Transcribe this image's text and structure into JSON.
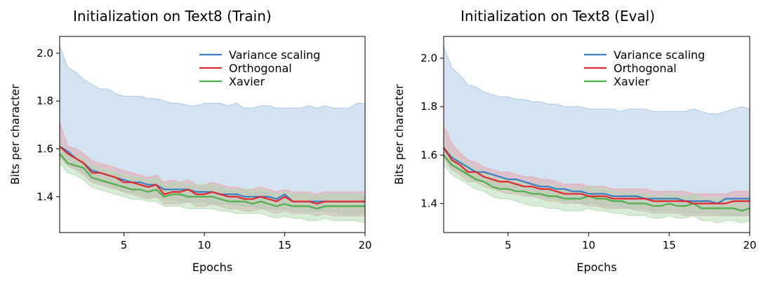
{
  "chart_data": [
    {
      "type": "line",
      "title": "Initialization on Text8 (Train)",
      "xlabel": "Epochs",
      "ylabel": "Bits per character",
      "xlim": [
        1,
        20
      ],
      "ylim": [
        1.25,
        2.07
      ],
      "xticks": [
        5,
        10,
        15,
        20
      ],
      "yticks": [
        1.4,
        1.6,
        1.8,
        2.0
      ],
      "ytick_labels": [
        "1.4",
        "1.6",
        "1.8",
        "2.0"
      ],
      "legend": "top-right",
      "grid": false,
      "x": [
        1,
        1.5,
        2,
        2.5,
        3,
        3.5,
        4,
        4.5,
        5,
        5.5,
        6,
        6.5,
        7,
        7.5,
        8,
        8.5,
        9,
        9.5,
        10,
        10.5,
        11,
        11.5,
        12,
        12.5,
        13,
        13.5,
        14,
        14.5,
        15,
        15.5,
        16,
        16.5,
        17,
        17.5,
        18,
        18.5,
        19,
        19.5,
        20
      ],
      "series": [
        {
          "name": "Variance scaling",
          "color": "#3a7dc0",
          "band_color": "#9fc2e0",
          "band_border": "#a9c8e6",
          "values": [
            1.61,
            1.59,
            1.56,
            1.54,
            1.51,
            1.5,
            1.49,
            1.48,
            1.47,
            1.46,
            1.46,
            1.45,
            1.45,
            1.43,
            1.43,
            1.43,
            1.43,
            1.42,
            1.42,
            1.42,
            1.41,
            1.41,
            1.41,
            1.4,
            1.4,
            1.4,
            1.4,
            1.39,
            1.41,
            1.38,
            1.38,
            1.38,
            1.38,
            1.38,
            1.38,
            1.38,
            1.38,
            1.38,
            1.38
          ],
          "lower": [
            1.57,
            1.54,
            1.52,
            1.5,
            1.47,
            1.46,
            1.45,
            1.44,
            1.42,
            1.42,
            1.41,
            1.4,
            1.4,
            1.39,
            1.39,
            1.38,
            1.38,
            1.38,
            1.38,
            1.37,
            1.37,
            1.37,
            1.36,
            1.36,
            1.36,
            1.35,
            1.35,
            1.35,
            1.35,
            1.34,
            1.34,
            1.34,
            1.34,
            1.34,
            1.34,
            1.33,
            1.33,
            1.33,
            1.33
          ],
          "upper": [
            2.03,
            1.94,
            1.92,
            1.89,
            1.87,
            1.85,
            1.85,
            1.83,
            1.82,
            1.82,
            1.82,
            1.81,
            1.81,
            1.8,
            1.79,
            1.79,
            1.78,
            1.78,
            1.79,
            1.79,
            1.79,
            1.78,
            1.79,
            1.77,
            1.77,
            1.78,
            1.78,
            1.77,
            1.77,
            1.77,
            1.77,
            1.78,
            1.77,
            1.78,
            1.77,
            1.77,
            1.77,
            1.79,
            1.79
          ]
        },
        {
          "name": "Orthogonal",
          "color": "#e0282e",
          "band_color": "#e59ca3",
          "band_border": "#e8aab0",
          "values": [
            1.61,
            1.58,
            1.56,
            1.54,
            1.5,
            1.5,
            1.49,
            1.48,
            1.46,
            1.46,
            1.45,
            1.44,
            1.45,
            1.41,
            1.42,
            1.42,
            1.43,
            1.41,
            1.41,
            1.42,
            1.41,
            1.4,
            1.4,
            1.39,
            1.39,
            1.4,
            1.39,
            1.38,
            1.4,
            1.38,
            1.38,
            1.38,
            1.37,
            1.38,
            1.38,
            1.38,
            1.38,
            1.38,
            1.38
          ],
          "lower": [
            1.56,
            1.53,
            1.51,
            1.49,
            1.46,
            1.45,
            1.44,
            1.43,
            1.42,
            1.41,
            1.4,
            1.39,
            1.4,
            1.37,
            1.37,
            1.37,
            1.38,
            1.36,
            1.36,
            1.37,
            1.36,
            1.35,
            1.35,
            1.34,
            1.34,
            1.35,
            1.34,
            1.33,
            1.34,
            1.33,
            1.33,
            1.33,
            1.32,
            1.33,
            1.32,
            1.32,
            1.32,
            1.32,
            1.32
          ],
          "upper": [
            1.71,
            1.61,
            1.6,
            1.58,
            1.55,
            1.54,
            1.53,
            1.52,
            1.51,
            1.5,
            1.49,
            1.48,
            1.49,
            1.46,
            1.47,
            1.46,
            1.47,
            1.45,
            1.45,
            1.46,
            1.45,
            1.44,
            1.44,
            1.43,
            1.43,
            1.44,
            1.43,
            1.42,
            1.43,
            1.42,
            1.42,
            1.42,
            1.41,
            1.42,
            1.42,
            1.42,
            1.42,
            1.42,
            1.42
          ]
        },
        {
          "name": "Xavier",
          "color": "#4daf4a",
          "band_color": "#a8d7a6",
          "band_border": "#b4ddb2",
          "values": [
            1.58,
            1.54,
            1.53,
            1.52,
            1.48,
            1.47,
            1.46,
            1.45,
            1.44,
            1.43,
            1.43,
            1.42,
            1.43,
            1.4,
            1.41,
            1.41,
            1.4,
            1.4,
            1.4,
            1.4,
            1.39,
            1.38,
            1.38,
            1.38,
            1.37,
            1.38,
            1.37,
            1.36,
            1.37,
            1.36,
            1.36,
            1.36,
            1.35,
            1.36,
            1.36,
            1.36,
            1.36,
            1.36,
            1.36
          ],
          "lower": [
            1.54,
            1.5,
            1.49,
            1.47,
            1.44,
            1.43,
            1.42,
            1.41,
            1.4,
            1.39,
            1.39,
            1.38,
            1.38,
            1.36,
            1.36,
            1.36,
            1.35,
            1.35,
            1.35,
            1.35,
            1.34,
            1.34,
            1.33,
            1.33,
            1.33,
            1.33,
            1.32,
            1.31,
            1.32,
            1.31,
            1.31,
            1.3,
            1.3,
            1.31,
            1.3,
            1.3,
            1.3,
            1.3,
            1.29
          ],
          "upper": [
            1.63,
            1.59,
            1.57,
            1.56,
            1.53,
            1.52,
            1.51,
            1.5,
            1.49,
            1.48,
            1.48,
            1.47,
            1.48,
            1.45,
            1.46,
            1.46,
            1.45,
            1.45,
            1.45,
            1.45,
            1.44,
            1.43,
            1.43,
            1.43,
            1.42,
            1.43,
            1.42,
            1.41,
            1.42,
            1.41,
            1.41,
            1.41,
            1.4,
            1.41,
            1.41,
            1.41,
            1.41,
            1.41,
            1.41
          ]
        }
      ]
    },
    {
      "type": "line",
      "title": "Initialization on Text8 (Eval)",
      "xlabel": "Epochs",
      "ylabel": "Bits per character",
      "xlim": [
        1,
        20
      ],
      "ylim": [
        1.28,
        2.09
      ],
      "xticks": [
        5,
        10,
        15,
        20
      ],
      "yticks": [
        1.4,
        1.6,
        1.8,
        2.0
      ],
      "ytick_labels": [
        "1.4",
        "1.6",
        "1.8",
        "2.0"
      ],
      "legend": "top-right",
      "grid": false,
      "x": [
        1,
        1.5,
        2,
        2.5,
        3,
        3.5,
        4,
        4.5,
        5,
        5.5,
        6,
        6.5,
        7,
        7.5,
        8,
        8.5,
        9,
        9.5,
        10,
        10.5,
        11,
        11.5,
        12,
        12.5,
        13,
        13.5,
        14,
        14.5,
        15,
        15.5,
        16,
        16.5,
        17,
        17.5,
        18,
        18.5,
        19,
        19.5,
        20
      ],
      "series": [
        {
          "name": "Variance scaling",
          "color": "#3a7dc0",
          "band_color": "#9fc2e0",
          "band_border": "#a9c8e6",
          "values": [
            1.63,
            1.59,
            1.57,
            1.55,
            1.53,
            1.53,
            1.52,
            1.51,
            1.5,
            1.5,
            1.49,
            1.48,
            1.47,
            1.47,
            1.46,
            1.46,
            1.45,
            1.45,
            1.44,
            1.44,
            1.44,
            1.43,
            1.43,
            1.43,
            1.43,
            1.42,
            1.42,
            1.42,
            1.42,
            1.42,
            1.41,
            1.41,
            1.41,
            1.41,
            1.4,
            1.42,
            1.42,
            1.42,
            1.42
          ],
          "lower": [
            1.59,
            1.55,
            1.53,
            1.51,
            1.49,
            1.49,
            1.48,
            1.47,
            1.46,
            1.45,
            1.44,
            1.43,
            1.43,
            1.42,
            1.42,
            1.41,
            1.41,
            1.4,
            1.4,
            1.4,
            1.39,
            1.39,
            1.39,
            1.38,
            1.38,
            1.38,
            1.37,
            1.37,
            1.37,
            1.37,
            1.36,
            1.36,
            1.36,
            1.36,
            1.36,
            1.35,
            1.35,
            1.35,
            1.35
          ],
          "upper": [
            2.05,
            1.96,
            1.93,
            1.89,
            1.88,
            1.86,
            1.85,
            1.84,
            1.84,
            1.83,
            1.83,
            1.82,
            1.82,
            1.81,
            1.81,
            1.8,
            1.8,
            1.8,
            1.79,
            1.79,
            1.79,
            1.79,
            1.78,
            1.79,
            1.79,
            1.79,
            1.78,
            1.78,
            1.78,
            1.78,
            1.78,
            1.79,
            1.78,
            1.77,
            1.77,
            1.78,
            1.79,
            1.8,
            1.79
          ]
        },
        {
          "name": "Orthogonal",
          "color": "#e0282e",
          "band_color": "#e59ca3",
          "band_border": "#e8aab0",
          "values": [
            1.63,
            1.58,
            1.56,
            1.53,
            1.53,
            1.51,
            1.5,
            1.49,
            1.49,
            1.48,
            1.47,
            1.47,
            1.46,
            1.46,
            1.45,
            1.44,
            1.44,
            1.44,
            1.43,
            1.43,
            1.43,
            1.42,
            1.42,
            1.42,
            1.42,
            1.42,
            1.41,
            1.41,
            1.41,
            1.41,
            1.41,
            1.4,
            1.4,
            1.4,
            1.4,
            1.4,
            1.41,
            1.41,
            1.41
          ],
          "lower": [
            1.59,
            1.54,
            1.52,
            1.49,
            1.49,
            1.47,
            1.46,
            1.45,
            1.44,
            1.44,
            1.43,
            1.43,
            1.42,
            1.41,
            1.41,
            1.4,
            1.4,
            1.4,
            1.39,
            1.39,
            1.38,
            1.38,
            1.38,
            1.38,
            1.37,
            1.37,
            1.36,
            1.36,
            1.36,
            1.36,
            1.35,
            1.35,
            1.35,
            1.35,
            1.35,
            1.35,
            1.35,
            1.35,
            1.35
          ],
          "upper": [
            1.72,
            1.65,
            1.61,
            1.58,
            1.57,
            1.55,
            1.54,
            1.53,
            1.53,
            1.52,
            1.51,
            1.51,
            1.5,
            1.5,
            1.49,
            1.48,
            1.48,
            1.48,
            1.47,
            1.47,
            1.47,
            1.46,
            1.46,
            1.46,
            1.46,
            1.46,
            1.45,
            1.45,
            1.45,
            1.45,
            1.45,
            1.44,
            1.44,
            1.44,
            1.44,
            1.44,
            1.45,
            1.45,
            1.45
          ]
        },
        {
          "name": "Xavier",
          "color": "#4daf4a",
          "band_color": "#a8d7a6",
          "band_border": "#b4ddb2",
          "values": [
            1.6,
            1.56,
            1.54,
            1.52,
            1.5,
            1.49,
            1.47,
            1.46,
            1.46,
            1.45,
            1.45,
            1.44,
            1.44,
            1.43,
            1.43,
            1.42,
            1.42,
            1.42,
            1.43,
            1.42,
            1.42,
            1.41,
            1.41,
            1.4,
            1.4,
            1.4,
            1.39,
            1.39,
            1.4,
            1.39,
            1.39,
            1.4,
            1.38,
            1.38,
            1.38,
            1.38,
            1.38,
            1.37,
            1.38
          ],
          "lower": [
            1.56,
            1.52,
            1.5,
            1.48,
            1.46,
            1.45,
            1.43,
            1.42,
            1.42,
            1.41,
            1.4,
            1.39,
            1.39,
            1.38,
            1.38,
            1.37,
            1.37,
            1.37,
            1.38,
            1.37,
            1.37,
            1.36,
            1.36,
            1.35,
            1.35,
            1.35,
            1.34,
            1.34,
            1.35,
            1.34,
            1.34,
            1.35,
            1.33,
            1.33,
            1.32,
            1.33,
            1.33,
            1.32,
            1.33
          ],
          "upper": [
            1.64,
            1.6,
            1.58,
            1.56,
            1.54,
            1.53,
            1.51,
            1.5,
            1.5,
            1.49,
            1.49,
            1.48,
            1.48,
            1.47,
            1.47,
            1.46,
            1.46,
            1.46,
            1.47,
            1.46,
            1.46,
            1.45,
            1.45,
            1.44,
            1.44,
            1.44,
            1.43,
            1.43,
            1.44,
            1.43,
            1.43,
            1.44,
            1.42,
            1.42,
            1.42,
            1.42,
            1.42,
            1.41,
            1.42
          ]
        }
      ]
    }
  ]
}
